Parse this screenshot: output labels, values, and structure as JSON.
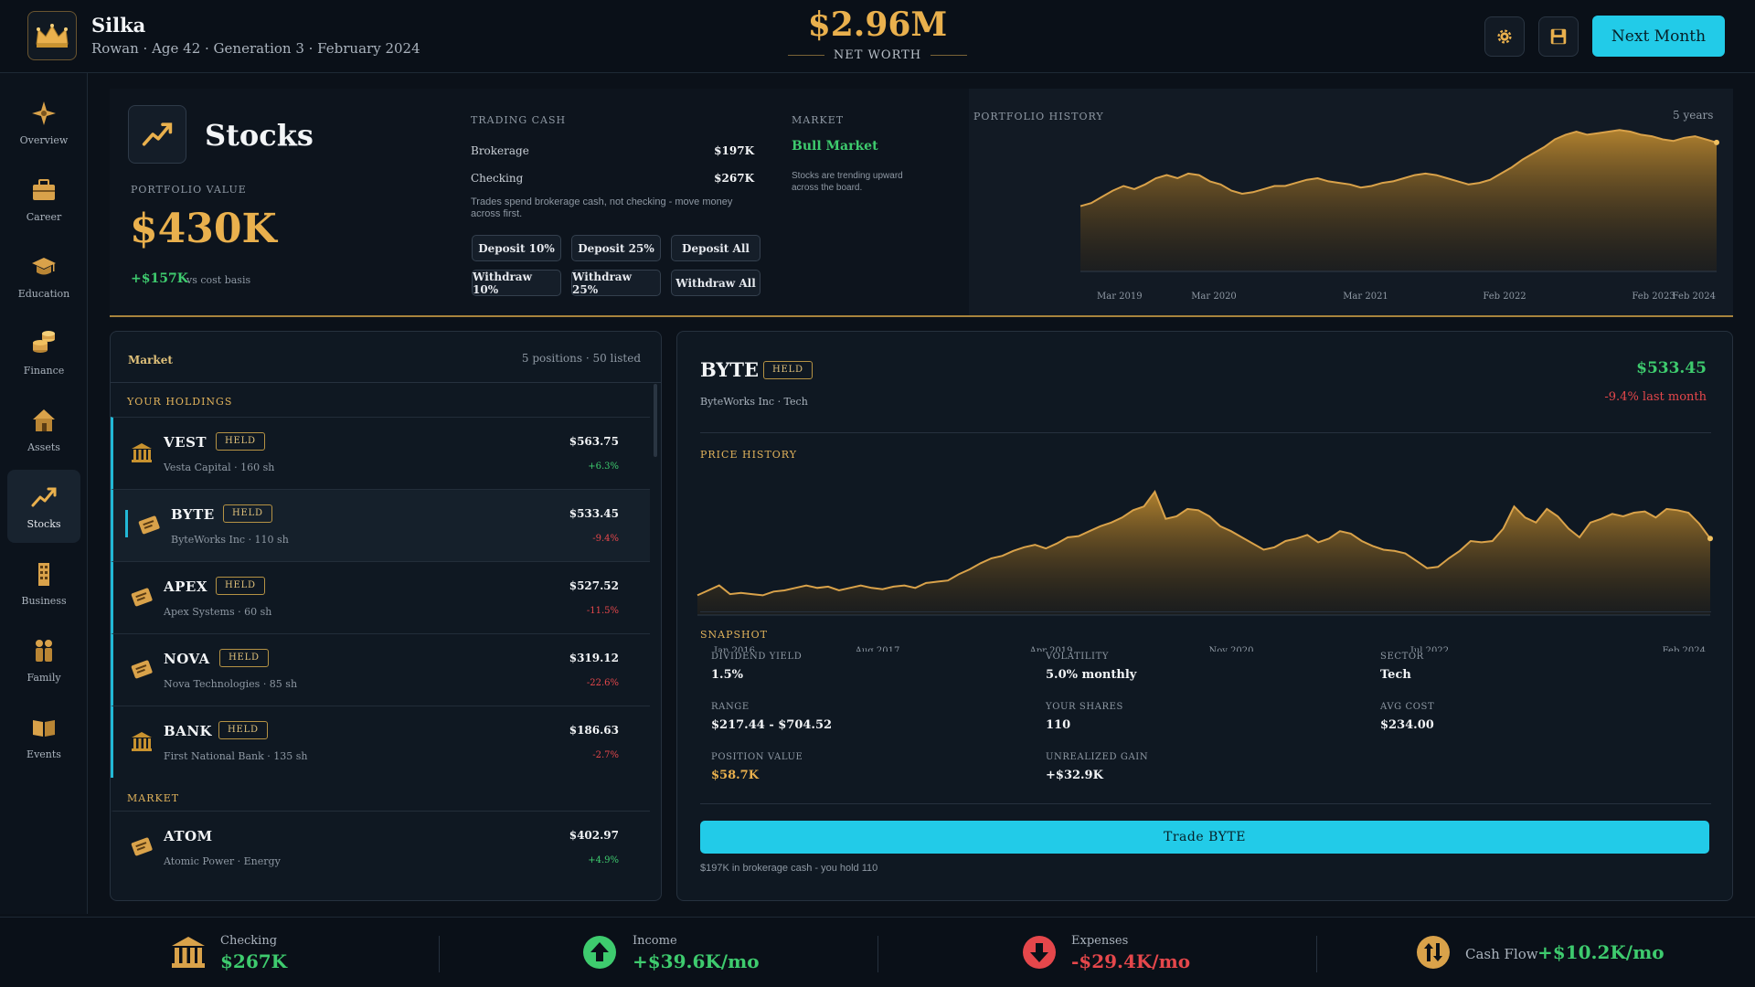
{
  "header": {
    "character_name": "Silka",
    "character_sub": "Rowan · Age 42 · Generation 3 · February 2024",
    "net_worth": "$2.96M",
    "net_worth_label": "NET WORTH",
    "next_month_label": "Next Month",
    "settings_icon": "gear-icon",
    "save_icon": "floppy-disk-icon"
  },
  "sidebar": {
    "items": [
      {
        "label": "Overview",
        "icon": "compass-icon"
      },
      {
        "label": "Career",
        "icon": "briefcase-icon"
      },
      {
        "label": "Education",
        "icon": "graduation-cap-icon"
      },
      {
        "label": "Finance",
        "icon": "coins-icon"
      },
      {
        "label": "Assets",
        "icon": "house-icon"
      },
      {
        "label": "Stocks",
        "icon": "trend-up-icon",
        "active": true
      },
      {
        "label": "Business",
        "icon": "building-icon"
      },
      {
        "label": "Family",
        "icon": "family-icon"
      },
      {
        "label": "Events",
        "icon": "book-icon"
      }
    ]
  },
  "stocks_header": {
    "title": "Stocks",
    "portfolio_value_label": "PORTFOLIO VALUE",
    "portfolio_value": "$430K",
    "gain": "+$157K",
    "gain_note": "vs cost basis",
    "trading_cash_label": "TRADING CASH",
    "brokerage_label": "Brokerage",
    "brokerage_value": "$197K",
    "checking_label": "Checking",
    "checking_value": "$267K",
    "trading_note": "Trades spend brokerage cash, not checking - move money across first.",
    "buttons": [
      "Deposit 10%",
      "Deposit 25%",
      "Deposit All",
      "Withdraw 10%",
      "Withdraw 25%",
      "Withdraw All"
    ],
    "market_label": "MARKET",
    "market_state": "Bull Market",
    "market_desc": "Stocks are trending upward across the board.",
    "portfolio_history_label": "PORTFOLIO HISTORY",
    "portfolio_history_range": "5 years"
  },
  "chart_data": [
    {
      "type": "area",
      "title": "PORTFOLIO HISTORY",
      "x_tick_labels": [
        "Mar 2019",
        "Mar 2020",
        "Mar 2021",
        "Feb 2022",
        "Feb 2023",
        "Feb 2024"
      ],
      "values": [
        0.42,
        0.44,
        0.48,
        0.52,
        0.55,
        0.53,
        0.56,
        0.6,
        0.62,
        0.6,
        0.63,
        0.62,
        0.58,
        0.56,
        0.52,
        0.5,
        0.51,
        0.53,
        0.55,
        0.55,
        0.57,
        0.59,
        0.6,
        0.58,
        0.57,
        0.56,
        0.54,
        0.55,
        0.57,
        0.58,
        0.6,
        0.62,
        0.63,
        0.62,
        0.6,
        0.58,
        0.56,
        0.57,
        0.59,
        0.63,
        0.67,
        0.72,
        0.76,
        0.8,
        0.85,
        0.88,
        0.9,
        0.88,
        0.89,
        0.9,
        0.91,
        0.9,
        0.88,
        0.87,
        0.85,
        0.84,
        0.86,
        0.87,
        0.85,
        0.83
      ]
    },
    {
      "type": "area",
      "title": "PRICE HISTORY",
      "x_tick_labels": [
        "Jan 2016",
        "Aug 2017",
        "Apr 2019",
        "Nov 2020",
        "Jul 2022",
        "Feb 2024"
      ],
      "values": [
        0.16,
        0.2,
        0.24,
        0.17,
        0.18,
        0.17,
        0.16,
        0.19,
        0.2,
        0.22,
        0.24,
        0.22,
        0.23,
        0.2,
        0.22,
        0.24,
        0.22,
        0.21,
        0.23,
        0.24,
        0.22,
        0.26,
        0.27,
        0.28,
        0.33,
        0.37,
        0.42,
        0.46,
        0.48,
        0.52,
        0.55,
        0.57,
        0.54,
        0.58,
        0.63,
        0.64,
        0.68,
        0.72,
        0.75,
        0.79,
        0.85,
        0.88,
        1.0,
        0.78,
        0.8,
        0.86,
        0.85,
        0.8,
        0.72,
        0.68,
        0.63,
        0.58,
        0.53,
        0.55,
        0.6,
        0.62,
        0.65,
        0.59,
        0.62,
        0.68,
        0.66,
        0.6,
        0.56,
        0.53,
        0.52,
        0.5,
        0.44,
        0.38,
        0.39,
        0.46,
        0.52,
        0.6,
        0.59,
        0.6,
        0.7,
        0.88,
        0.79,
        0.75,
        0.86,
        0.8,
        0.7,
        0.63,
        0.75,
        0.78,
        0.82,
        0.8,
        0.83,
        0.84,
        0.79,
        0.86,
        0.85,
        0.83,
        0.74,
        0.62
      ],
      "current_price": "$533.45"
    }
  ],
  "market_panel": {
    "title": "Market",
    "count": "5 positions · 50 listed",
    "holdings_label": "YOUR HOLDINGS",
    "market_label": "MARKET",
    "holdings": [
      {
        "ticker": "VEST",
        "badge": "HELD",
        "sub": "Vesta Capital · 160 sh",
        "price": "$563.75",
        "change": "+6.3%",
        "icon": "bank-icon"
      },
      {
        "ticker": "BYTE",
        "badge": "HELD",
        "sub": "ByteWorks Inc · 110 sh",
        "price": "$533.45",
        "change": "-9.4%",
        "icon": "certificate-icon"
      },
      {
        "ticker": "APEX",
        "badge": "HELD",
        "sub": "Apex Systems · 60 sh",
        "price": "$527.52",
        "change": "-11.5%",
        "icon": "certificate-icon"
      },
      {
        "ticker": "NOVA",
        "badge": "HELD",
        "sub": "Nova Technologies · 85 sh",
        "price": "$319.12",
        "change": "-22.6%",
        "icon": "certificate-icon"
      },
      {
        "ticker": "BANK",
        "badge": "HELD",
        "sub": "First National Bank · 135 sh",
        "price": "$186.63",
        "change": "-2.7%",
        "icon": "bank-icon"
      }
    ],
    "market": [
      {
        "ticker": "ATOM",
        "sub": "Atomic Power · Energy",
        "price": "$402.97",
        "change": "+4.9%",
        "icon": "certificate-icon"
      }
    ]
  },
  "detail": {
    "ticker": "BYTE",
    "badge": "HELD",
    "sub": "ByteWorks Inc · Tech",
    "price": "$533.45",
    "change": "-9.4% last month",
    "price_history_label": "PRICE HISTORY",
    "snapshot_label": "SNAPSHOT",
    "snapshot": {
      "dividend_yield_label": "DIVIDEND YIELD",
      "dividend_yield": "1.5%",
      "volatility_label": "VOLATILITY",
      "volatility": "5.0% monthly",
      "sector_label": "SECTOR",
      "sector": "Tech",
      "range_label": "RANGE",
      "range": "$217.44 - $704.52",
      "your_shares_label": "YOUR SHARES",
      "your_shares": "110",
      "avg_cost_label": "AVG COST",
      "avg_cost": "$234.00",
      "position_value_label": "POSITION VALUE",
      "position_value": "$58.7K",
      "unrealized_gain_label": "UNREALIZED GAIN",
      "unrealized_gain": "+$32.9K"
    },
    "trade_button": "Trade BYTE",
    "trade_note": "$197K in brokerage cash - you hold 110"
  },
  "footer": {
    "checking_label": "Checking",
    "checking_value": "$267K",
    "income_label": "Income",
    "income_value": "+$39.6K/mo",
    "expenses_label": "Expenses",
    "expenses_value": "-$29.4K/mo",
    "cashflow_label": "Cash Flow",
    "cashflow_value": "+$10.2K/mo"
  },
  "colors": {
    "accent_gold": "#e9b04d",
    "accent_cyan": "#22cbe8",
    "positive": "#3ecb6e",
    "negative": "#e5474b"
  }
}
